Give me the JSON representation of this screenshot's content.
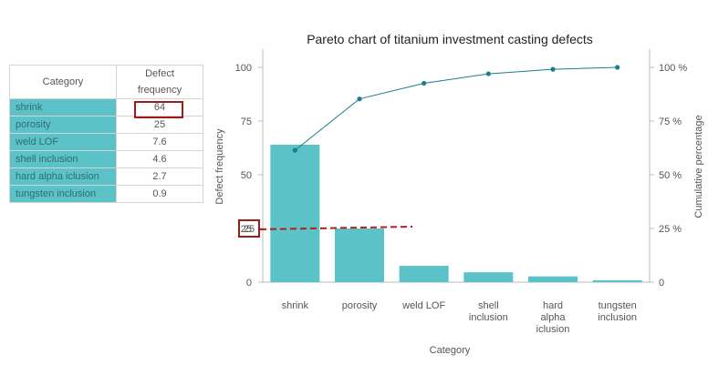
{
  "table": {
    "headers": [
      "Category",
      "Defect frequency"
    ],
    "rows": [
      {
        "category": "shrink",
        "value": "64"
      },
      {
        "category": "porosity",
        "value": "25"
      },
      {
        "category": "weld LOF",
        "value": "7.6"
      },
      {
        "category": "shell inclusion",
        "value": "4.6"
      },
      {
        "category": "hard alpha iclusion",
        "value": "2.7"
      },
      {
        "category": "tungsten inclusion",
        "value": "0.9"
      }
    ]
  },
  "chart_data": {
    "type": "bar",
    "title": "Pareto chart of titanium investment casting defects",
    "xlabel": "Category",
    "ylabel": "Defect frequency",
    "y2label": "Cumulative percentage",
    "categories": [
      [
        "shrink"
      ],
      [
        "porosity"
      ],
      [
        "weld LOF"
      ],
      [
        "shell",
        "inclusion"
      ],
      [
        "hard",
        "alpha",
        "iclusion"
      ],
      [
        "tungsten",
        "inclusion"
      ]
    ],
    "bar_values": [
      64,
      25,
      7.6,
      4.6,
      2.7,
      0.9
    ],
    "cumulative_percent": [
      61.4,
      85.3,
      92.6,
      97.0,
      99.1,
      100
    ],
    "ylim": [
      0,
      105
    ],
    "y_ticks": [
      0,
      25,
      50,
      75,
      100
    ],
    "y2_ticks": [
      "0",
      "25 %",
      "50 %",
      "75 %",
      "100 %"
    ],
    "reference_value": 25,
    "reference_label": "25",
    "colors": {
      "bar": "#5bc3c8",
      "line": "#1d7c8c",
      "reference": "#b71c1c",
      "highlight": "#a11b1b"
    }
  }
}
